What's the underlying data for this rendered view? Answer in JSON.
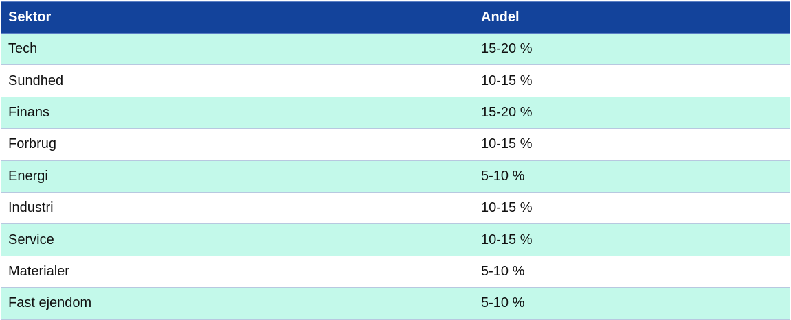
{
  "table": {
    "headers": {
      "sector": "Sektor",
      "share": "Andel"
    },
    "rows": [
      {
        "sector": "Tech",
        "share": "15-20 %"
      },
      {
        "sector": "Sundhed",
        "share": "10-15 %"
      },
      {
        "sector": "Finans",
        "share": "15-20 %"
      },
      {
        "sector": "Forbrug",
        "share": "10-15 %"
      },
      {
        "sector": "Energi",
        "share": "5-10 %"
      },
      {
        "sector": "Industri",
        "share": "10-15 %"
      },
      {
        "sector": "Service",
        "share": "10-15 %"
      },
      {
        "sector": "Materialer",
        "share": "5-10 %"
      },
      {
        "sector": "Fast ejendom",
        "share": "5-10 %"
      }
    ]
  },
  "colors": {
    "header_bg": "#13439b",
    "header_text": "#ffffff",
    "row_alt_bg": "#c3f9ea",
    "row_bg": "#ffffff",
    "border": "#b8c8e0"
  }
}
